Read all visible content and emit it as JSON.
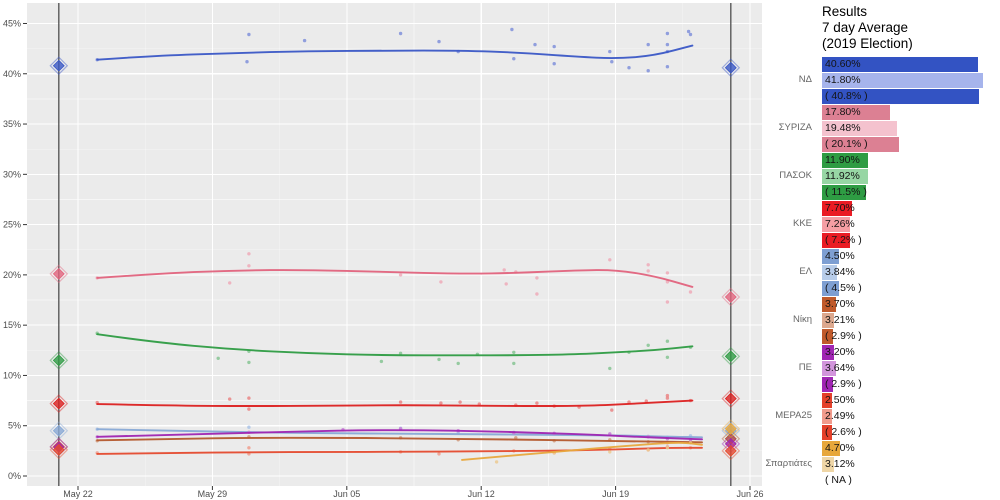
{
  "panel": {
    "title_lines": [
      "Results",
      "7 day Average",
      "(2019 Election)"
    ]
  },
  "axes": {
    "x_ticks": [
      {
        "label": "May 22",
        "day": 1
      },
      {
        "label": "May 29",
        "day": 8
      },
      {
        "label": "Jun 05",
        "day": 15
      },
      {
        "label": "Jun 12",
        "day": 22
      },
      {
        "label": "Jun 19",
        "day": 29
      },
      {
        "label": "Jun 26",
        "day": 36
      }
    ],
    "y_ticks": [
      {
        "label": "0%",
        "value": 0
      },
      {
        "label": "5%",
        "value": 5
      },
      {
        "label": "10%",
        "value": 10
      },
      {
        "label": "15%",
        "value": 15
      },
      {
        "label": "20%",
        "value": 20
      },
      {
        "label": "25%",
        "value": 25
      },
      {
        "label": "30%",
        "value": 30
      },
      {
        "label": "35%",
        "value": 35
      },
      {
        "label": "40%",
        "value": 40
      },
      {
        "label": "45%",
        "value": 45
      }
    ]
  },
  "chart_data": {
    "type": "scatter",
    "title": "Greek election polling tracker (scatter + smoothed trend per party)",
    "x_unit": "days since May 21 election",
    "ylim": [
      -1,
      47
    ],
    "grid": "major 5% white on grey panel, minor 2.5%",
    "election_vlines": [
      {
        "name": "may-election",
        "day": 0
      },
      {
        "name": "june-election",
        "day": 35
      }
    ],
    "series": [
      {
        "name": "ΝΔ",
        "slug": "nd",
        "line": "#3a57c6",
        "point": "#8090da",
        "bar": "#3353c3",
        "bar_light": "#a6b4ec",
        "bars": [
          {
            "text": "40.60%",
            "value": 40.6
          },
          {
            "text": "41.80%",
            "value": 41.8
          },
          {
            "text": "( 40.8% )",
            "value": 40.8
          }
        ],
        "marker_may": 40.8,
        "marker_jun": 40.6,
        "trend": [
          [
            2,
            41.4
          ],
          [
            5,
            41.8
          ],
          [
            9,
            42.05
          ],
          [
            13,
            42.25
          ],
          [
            17,
            42.3
          ],
          [
            21,
            42.3
          ],
          [
            24,
            42.1
          ],
          [
            27,
            41.7
          ],
          [
            29,
            41.5
          ],
          [
            31,
            41.8
          ],
          [
            33,
            42.8
          ]
        ],
        "points": [
          [
            2,
            41.4
          ],
          [
            9.9,
            43.9
          ],
          [
            9.8,
            41.2
          ],
          [
            12.8,
            43.3
          ],
          [
            17.8,
            44.0
          ],
          [
            19.8,
            43.2
          ],
          [
            20.8,
            42.2
          ],
          [
            23.6,
            44.4
          ],
          [
            23.7,
            41.5
          ],
          [
            24.8,
            42.9
          ],
          [
            25.8,
            42.7
          ],
          [
            25.8,
            41.0
          ],
          [
            28.7,
            42.2
          ],
          [
            28.8,
            41.2
          ],
          [
            29.7,
            40.6
          ],
          [
            30.7,
            42.9
          ],
          [
            30.7,
            40.3
          ],
          [
            31.7,
            44.0
          ],
          [
            31.7,
            42.9
          ],
          [
            31.7,
            42.2
          ],
          [
            31.7,
            40.7
          ],
          [
            32.8,
            44.2
          ],
          [
            32.9,
            43.9
          ]
        ]
      },
      {
        "name": "ΣΥΡΙΖΑ",
        "slug": "syriza",
        "line": "#e2637d",
        "point": "#eeaab8",
        "bar": "#dc8093",
        "bar_light": "#f4c2ce",
        "bars": [
          {
            "text": "17.80%",
            "value": 17.8
          },
          {
            "text": "19.48%",
            "value": 19.48
          },
          {
            "text": "( 20.1% )",
            "value": 20.1
          }
        ],
        "marker_may": 20.1,
        "marker_jun": 17.8,
        "trend": [
          [
            2,
            19.7
          ],
          [
            5,
            20.1
          ],
          [
            9,
            20.45
          ],
          [
            13,
            20.5
          ],
          [
            17,
            20.3
          ],
          [
            21,
            20.1
          ],
          [
            24,
            20.2
          ],
          [
            27,
            20.45
          ],
          [
            29,
            20.5
          ],
          [
            31,
            19.9
          ],
          [
            33,
            18.8
          ]
        ],
        "points": [
          [
            2,
            19.7
          ],
          [
            8.9,
            19.2
          ],
          [
            9.9,
            22.1
          ],
          [
            9.9,
            20.9
          ],
          [
            17.8,
            20.0
          ],
          [
            19.9,
            19.3
          ],
          [
            23.2,
            20.5
          ],
          [
            23.8,
            20.3
          ],
          [
            23.3,
            19.1
          ],
          [
            24.9,
            19.7
          ],
          [
            24.9,
            18.1
          ],
          [
            28.7,
            21.5
          ],
          [
            30.7,
            21.0
          ],
          [
            30.7,
            20.4
          ],
          [
            31.7,
            20.2
          ],
          [
            31.7,
            19.3
          ],
          [
            31.7,
            17.3
          ],
          [
            32.9,
            18.3
          ]
        ]
      },
      {
        "name": "ΠΑΣΟΚ",
        "slug": "pasok",
        "line": "#2e9c43",
        "point": "#86c493",
        "bar": "#2e9c43",
        "bar_light": "#97d6a4",
        "bars": [
          {
            "text": "11.90%",
            "value": 11.9
          },
          {
            "text": "11.92%",
            "value": 11.92
          },
          {
            "text": "( 11.5% )",
            "value": 11.5
          }
        ],
        "marker_may": 11.5,
        "marker_jun": 11.9,
        "trend": [
          [
            2,
            14.1
          ],
          [
            5,
            13.3
          ],
          [
            9,
            12.6
          ],
          [
            13,
            12.2
          ],
          [
            17,
            12.0
          ],
          [
            21,
            12.0
          ],
          [
            24,
            12.0
          ],
          [
            27,
            12.1
          ],
          [
            29,
            12.3
          ],
          [
            31,
            12.5
          ],
          [
            33,
            12.9
          ]
        ],
        "points": [
          [
            2,
            14.2
          ],
          [
            8.3,
            11.7
          ],
          [
            9.9,
            12.4
          ],
          [
            9.9,
            11.3
          ],
          [
            16.8,
            11.4
          ],
          [
            17.8,
            12.2
          ],
          [
            19.8,
            11.6
          ],
          [
            20.8,
            11.2
          ],
          [
            21.8,
            12.1
          ],
          [
            23.7,
            12.3
          ],
          [
            23.7,
            11.2
          ],
          [
            28.7,
            10.7
          ],
          [
            29.7,
            12.3
          ],
          [
            30.7,
            13.0
          ],
          [
            31.7,
            13.4
          ],
          [
            31.7,
            11.8
          ],
          [
            32.9,
            12.8
          ]
        ]
      },
      {
        "name": "ΚΚΕ",
        "slug": "kke",
        "line": "#dc2020",
        "point": "#ea8585",
        "bar": "#ea1c24",
        "bar_light": "#f59ea4",
        "bars": [
          {
            "text": "7.70%",
            "value": 7.7
          },
          {
            "text": "7.26%",
            "value": 7.26
          },
          {
            "text": "( 7.2% )",
            "value": 7.2
          }
        ],
        "marker_may": 7.2,
        "marker_jun": 7.7,
        "trend": [
          [
            2,
            7.15
          ],
          [
            6,
            7.0
          ],
          [
            10,
            6.95
          ],
          [
            14,
            7.0
          ],
          [
            18,
            7.05
          ],
          [
            22,
            7.0
          ],
          [
            25,
            6.95
          ],
          [
            28,
            7.0
          ],
          [
            30,
            7.2
          ],
          [
            32,
            7.4
          ],
          [
            33,
            7.5
          ]
        ],
        "points": [
          [
            2,
            7.3
          ],
          [
            8.9,
            7.65
          ],
          [
            9.9,
            7.75
          ],
          [
            9.9,
            6.65
          ],
          [
            17.8,
            7.35
          ],
          [
            19.9,
            7.25
          ],
          [
            20.9,
            7.35
          ],
          [
            21.9,
            7.15
          ],
          [
            23.8,
            7.05
          ],
          [
            24.9,
            7.25
          ],
          [
            25.8,
            6.95
          ],
          [
            27.1,
            6.85
          ],
          [
            28.8,
            6.55
          ],
          [
            29.7,
            7.35
          ],
          [
            30.6,
            7.45
          ],
          [
            31.7,
            8.0
          ],
          [
            31.7,
            7.75
          ],
          [
            32.9,
            7.5
          ]
        ]
      },
      {
        "name": "ΕΛ",
        "slug": "el",
        "line": "#88a9d6",
        "point": "#aac3e6",
        "bar": "#7e9fd2",
        "bar_light": "#b7cce9",
        "bars": [
          {
            "text": "4.50%",
            "value": 4.5
          },
          {
            "text": "3.84%",
            "value": 3.84
          },
          {
            "text": "( 4.5% )",
            "value": 4.5
          }
        ],
        "marker_may": 4.5,
        "marker_jun": 4.5,
        "trend": [
          [
            2,
            4.65
          ],
          [
            6,
            4.5
          ],
          [
            10,
            4.35
          ],
          [
            14,
            4.25
          ],
          [
            18,
            4.2
          ],
          [
            22,
            4.15
          ],
          [
            25,
            4.1
          ],
          [
            28,
            4.05
          ],
          [
            30,
            4.0
          ],
          [
            32,
            3.9
          ],
          [
            33.5,
            3.85
          ]
        ],
        "points": [
          [
            2,
            4.65
          ],
          [
            9.9,
            4.85
          ],
          [
            17.8,
            4.75
          ],
          [
            20.8,
            4.3
          ],
          [
            23.7,
            4.35
          ],
          [
            25.8,
            4.2
          ],
          [
            28.7,
            4.1
          ],
          [
            30.7,
            3.95
          ],
          [
            31.7,
            3.85
          ],
          [
            32.9,
            4.0
          ]
        ]
      },
      {
        "name": "Νίκη",
        "slug": "niki",
        "line": "#b4582d",
        "point": "#d09a7e",
        "bar": "#c05a2b",
        "bar_light": "#dca88e",
        "bars": [
          {
            "text": "3.70%",
            "value": 3.7
          },
          {
            "text": "3.21%",
            "value": 3.21
          },
          {
            "text": "( 2.9% )",
            "value": 2.9
          }
        ],
        "marker_may": 2.9,
        "marker_jun": 3.7,
        "trend": [
          [
            2,
            3.55
          ],
          [
            6,
            3.7
          ],
          [
            10,
            3.8
          ],
          [
            14,
            3.8
          ],
          [
            18,
            3.75
          ],
          [
            22,
            3.65
          ],
          [
            25,
            3.6
          ],
          [
            28,
            3.5
          ],
          [
            30,
            3.45
          ],
          [
            32,
            3.4
          ],
          [
            33.5,
            3.35
          ]
        ],
        "points": [
          [
            2,
            3.5
          ],
          [
            9.9,
            3.9
          ],
          [
            17.8,
            3.8
          ],
          [
            20.8,
            3.6
          ],
          [
            23.8,
            3.8
          ],
          [
            25.8,
            3.5
          ],
          [
            28.7,
            3.6
          ],
          [
            30.7,
            3.4
          ],
          [
            31.7,
            3.3
          ],
          [
            32.9,
            3.4
          ]
        ]
      },
      {
        "name": "ΠΕ",
        "slug": "pe",
        "line": "#9f24b2",
        "point": "#c87fd6",
        "bar": "#a026b3",
        "bar_light": "#d295dc",
        "bars": [
          {
            "text": "3.20%",
            "value": 3.2
          },
          {
            "text": "3.64%",
            "value": 3.64
          },
          {
            "text": "( 2.9% )",
            "value": 2.9
          }
        ],
        "marker_may": 2.9,
        "marker_jun": 3.2,
        "trend": [
          [
            2,
            3.9
          ],
          [
            5,
            4.05
          ],
          [
            9,
            4.25
          ],
          [
            13,
            4.45
          ],
          [
            16,
            4.55
          ],
          [
            19,
            4.55
          ],
          [
            22,
            4.45
          ],
          [
            25,
            4.3
          ],
          [
            28,
            4.1
          ],
          [
            30,
            3.9
          ],
          [
            32,
            3.75
          ],
          [
            33.5,
            3.65
          ]
        ],
        "points": [
          [
            2,
            3.9
          ],
          [
            9.9,
            4.35
          ],
          [
            14.8,
            4.6
          ],
          [
            17.8,
            4.7
          ],
          [
            20.8,
            4.5
          ],
          [
            23.7,
            4.3
          ],
          [
            25.8,
            4.25
          ],
          [
            28.7,
            4.2
          ],
          [
            30.7,
            3.9
          ],
          [
            31.7,
            3.7
          ],
          [
            32.9,
            3.6
          ]
        ]
      },
      {
        "name": "ΜΕΡΑ25",
        "slug": "mera25",
        "line": "#e54a2e",
        "point": "#f09c8c",
        "bar": "#e4402a",
        "bar_light": "#f19b8c",
        "bars": [
          {
            "text": "2.50%",
            "value": 2.5
          },
          {
            "text": "2.49%",
            "value": 2.49
          },
          {
            "text": "( 2.6% )",
            "value": 2.6
          }
        ],
        "marker_may": 2.6,
        "marker_jun": 2.5,
        "trend": [
          [
            2,
            2.2
          ],
          [
            6,
            2.3
          ],
          [
            10,
            2.35
          ],
          [
            14,
            2.4
          ],
          [
            18,
            2.4
          ],
          [
            22,
            2.45
          ],
          [
            25,
            2.5
          ],
          [
            28,
            2.6
          ],
          [
            30,
            2.7
          ],
          [
            32,
            2.8
          ],
          [
            33.5,
            2.8
          ]
        ],
        "points": [
          [
            2,
            2.3
          ],
          [
            9.9,
            2.8
          ],
          [
            9.9,
            2.2
          ],
          [
            17.8,
            2.4
          ],
          [
            19.8,
            2.2
          ],
          [
            23.7,
            2.5
          ],
          [
            25.8,
            2.3
          ],
          [
            28.7,
            2.7
          ],
          [
            30.7,
            2.6
          ],
          [
            31.7,
            2.9
          ],
          [
            32.9,
            2.8
          ]
        ]
      },
      {
        "name": "Σπαρτιάτες",
        "slug": "spartiates",
        "line": "#e8a83d",
        "point": "#ecca92",
        "bar": "#e7a73b",
        "bar_light": "#efd6a6",
        "bars": [
          {
            "text": "4.70%",
            "value": 4.7
          },
          {
            "text": "3.12%",
            "value": 3.12
          },
          {
            "text": "( NA )",
            "value": null
          }
        ],
        "marker_may": null,
        "marker_jun": 4.7,
        "trend": [
          [
            21,
            1.6
          ],
          [
            24,
            2.1
          ],
          [
            27,
            2.6
          ],
          [
            29,
            2.9
          ],
          [
            31,
            3.2
          ],
          [
            32.5,
            3.35
          ],
          [
            33.5,
            3.1
          ]
        ],
        "points": [
          [
            22.8,
            1.4
          ],
          [
            25.8,
            2.3
          ],
          [
            28.7,
            2.4
          ],
          [
            30.7,
            2.6
          ],
          [
            31.7,
            2.8
          ],
          [
            32.9,
            3.3
          ]
        ]
      }
    ]
  }
}
